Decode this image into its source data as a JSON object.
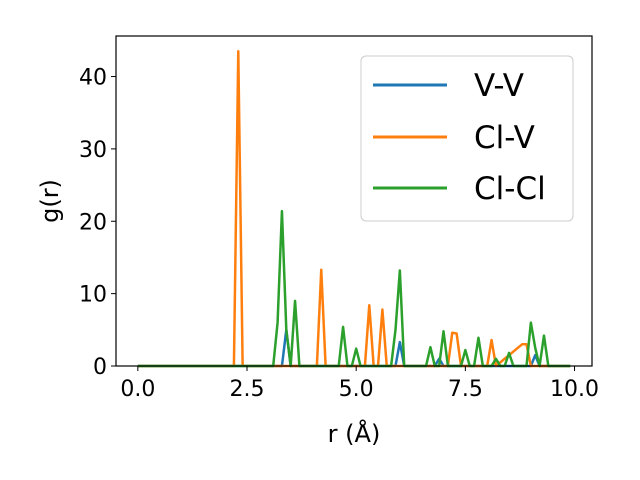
{
  "chart_data": {
    "type": "line",
    "title": "",
    "xlabel": "r (Å)",
    "ylabel": "g(r)",
    "xlim": [
      -0.5,
      10.4
    ],
    "ylim": [
      0,
      45.6
    ],
    "xticks": [
      "0.0",
      "2.5",
      "5.0",
      "7.5",
      "10.0"
    ],
    "xtick_values": [
      0,
      2.5,
      5,
      7.5,
      10
    ],
    "yticks": [
      "0",
      "10",
      "20",
      "30",
      "40"
    ],
    "ytick_values": [
      0,
      10,
      20,
      30,
      40
    ],
    "grid": false,
    "legend_position": "top-right",
    "series": [
      {
        "name": "V-V",
        "color": "#1f77b4",
        "x": [
          0,
          3.3,
          3.4,
          3.5,
          5.9,
          6.0,
          6.1,
          6.8,
          6.9,
          7.0,
          9.0,
          9.1,
          9.2,
          9.9
        ],
        "y": [
          0,
          0,
          5.0,
          0,
          0,
          3.3,
          0,
          0,
          1.0,
          0,
          0,
          1.5,
          0,
          0
        ]
      },
      {
        "name": "Cl-V",
        "color": "#ff7f0e",
        "x": [
          0,
          2.2,
          2.3,
          2.4,
          4.1,
          4.2,
          4.3,
          5.2,
          5.3,
          5.4,
          5.5,
          5.6,
          5.7,
          7.1,
          7.2,
          7.3,
          7.4,
          8.0,
          8.1,
          8.2,
          8.8,
          8.9,
          9.0,
          9.9
        ],
        "y": [
          0,
          0,
          43.5,
          0,
          0,
          13.3,
          0,
          0,
          8.4,
          0,
          0,
          7.8,
          0,
          0,
          4.6,
          4.5,
          0,
          0,
          3.6,
          0,
          3.0,
          3.0,
          0,
          0
        ]
      },
      {
        "name": "Cl-Cl",
        "color": "#2ca02c",
        "x": [
          0,
          3.1,
          3.2,
          3.3,
          3.4,
          3.5,
          3.6,
          3.7,
          4.6,
          4.7,
          4.8,
          4.9,
          5.0,
          5.1,
          5.8,
          5.9,
          6.0,
          6.1,
          6.6,
          6.7,
          6.8,
          6.9,
          7.0,
          7.1,
          7.4,
          7.5,
          7.6,
          7.7,
          7.8,
          7.9,
          8.1,
          8.2,
          8.3,
          8.4,
          8.5,
          8.6,
          8.9,
          9.0,
          9.1,
          9.2,
          9.3,
          9.4,
          9.9
        ],
        "y": [
          0,
          0,
          6.0,
          21.4,
          5.0,
          0,
          9.0,
          0,
          0,
          5.4,
          0,
          0,
          2.4,
          0,
          0,
          5.0,
          13.2,
          0,
          0,
          2.6,
          0,
          0,
          4.8,
          0,
          0,
          2.2,
          0,
          0,
          3.9,
          0,
          0,
          1.0,
          0,
          0,
          1.8,
          0,
          0,
          6.0,
          2.5,
          0,
          4.2,
          0,
          0
        ]
      }
    ]
  }
}
